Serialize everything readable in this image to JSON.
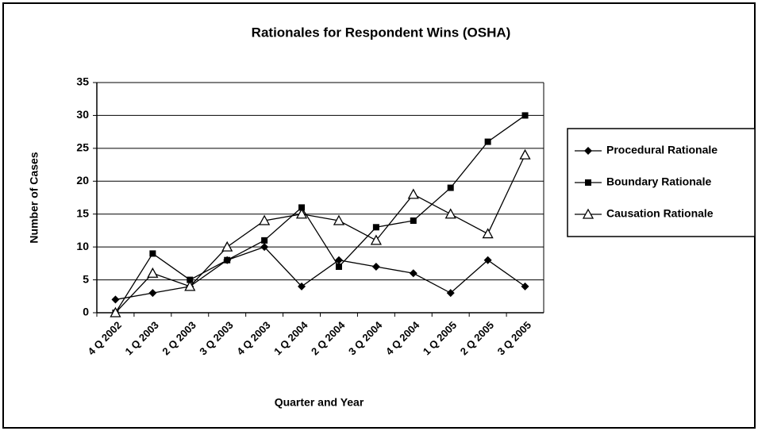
{
  "chart_data": {
    "type": "line",
    "title": "Rationales for Respondent Wins (OSHA)",
    "x_label": "Quarter and Year",
    "y_label": "Number of Cases",
    "categories": [
      "4 Q 2002",
      "1 Q 2003",
      "2 Q 2003",
      "3 Q 2003",
      "4 Q 2003",
      "1 Q 2004",
      "2 Q 2004",
      "3 Q 2004",
      "4 Q 2004",
      "1 Q 2005",
      "2 Q 2005",
      "3 Q 2005"
    ],
    "series": [
      {
        "name": "Procedural Rationale",
        "color": "#000000",
        "marker": "diamond",
        "values": [
          2,
          3,
          4,
          8,
          10,
          4,
          8,
          7,
          6,
          3,
          8,
          4
        ]
      },
      {
        "name": "Boundary Rationale",
        "color": "#000000",
        "marker": "square",
        "values": [
          0,
          9,
          5,
          8,
          11,
          16,
          7,
          13,
          14,
          19,
          26,
          30
        ]
      },
      {
        "name": "Causation Rationale",
        "color": "#000000",
        "marker": "triangle",
        "values": [
          0,
          6,
          4,
          10,
          14,
          15,
          14,
          11,
          18,
          15,
          12,
          24
        ]
      }
    ],
    "ylim": [
      0,
      35
    ],
    "yticks": [
      0,
      5,
      10,
      15,
      20,
      25,
      30,
      35
    ],
    "grid": true,
    "legend": "right"
  }
}
